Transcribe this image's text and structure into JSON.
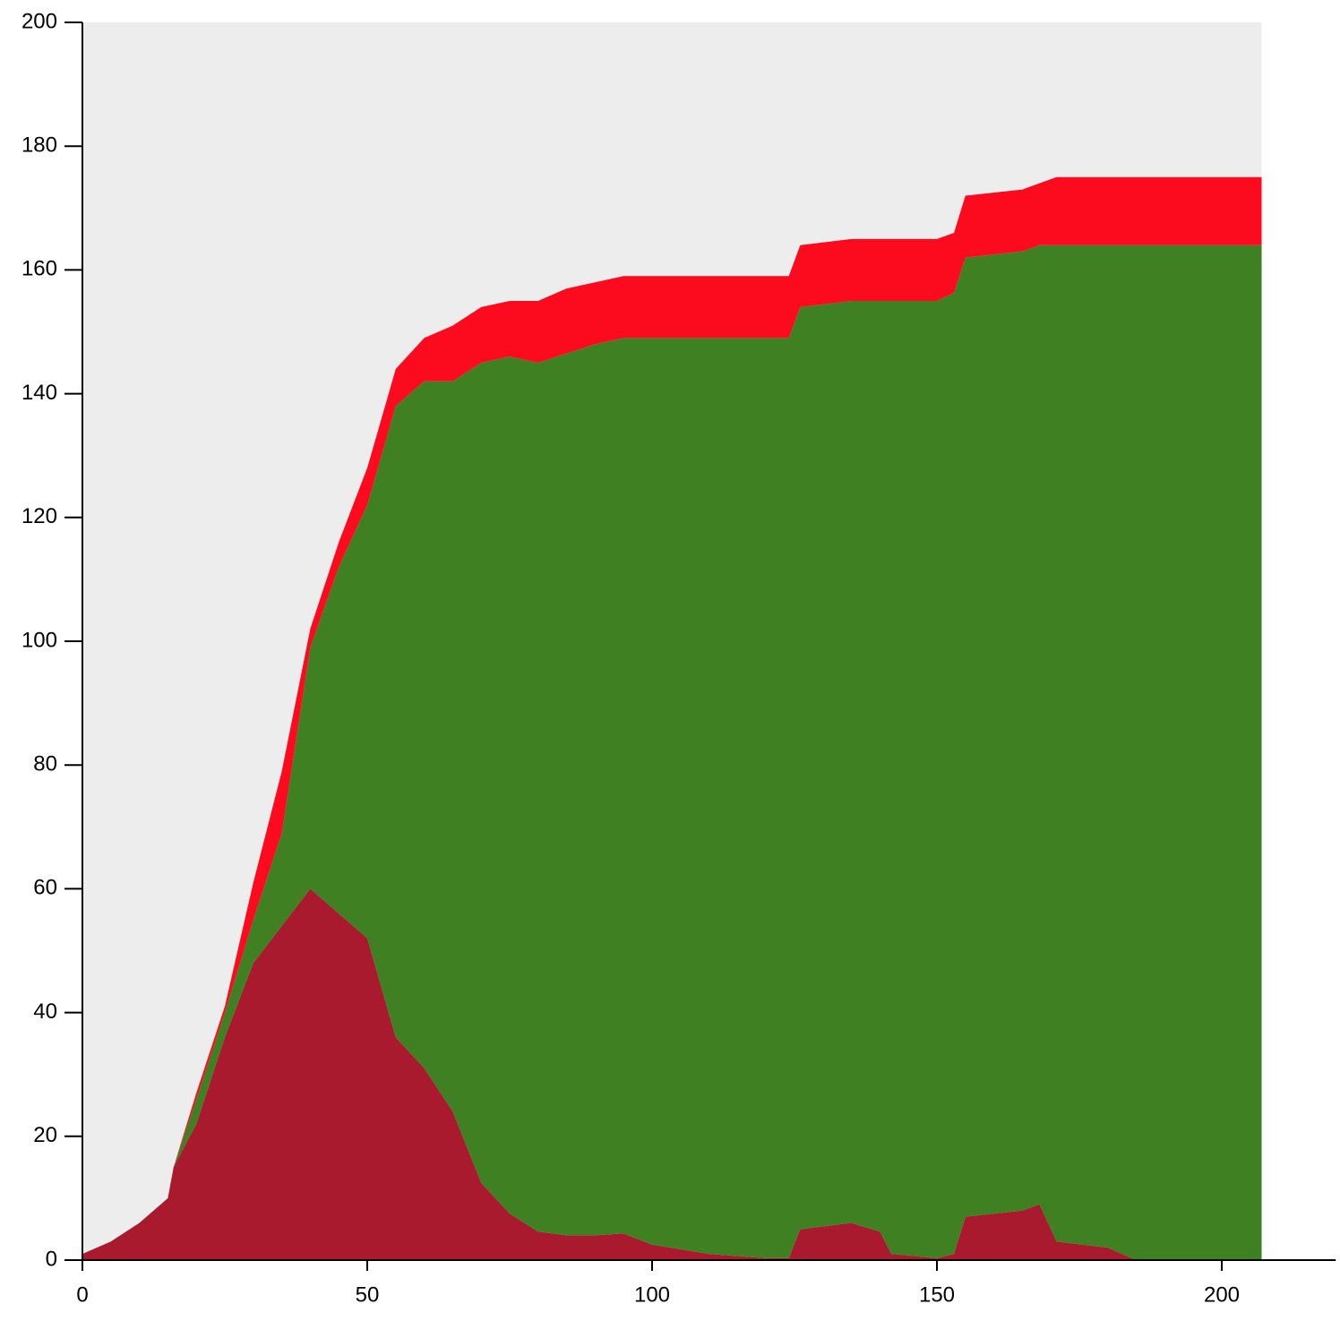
{
  "chart_data": {
    "type": "stacked_area",
    "x": [
      0,
      5,
      10,
      15,
      16,
      20,
      25,
      30,
      35,
      40,
      45,
      50,
      55,
      60,
      65,
      70,
      75,
      80,
      85,
      90,
      95,
      100,
      110,
      120,
      124,
      126,
      135,
      140,
      142,
      150,
      153,
      155,
      165,
      168,
      171,
      180,
      185,
      207
    ],
    "series": [
      {
        "color": "#a91a2e",
        "values": [
          1,
          3,
          6,
          10,
          15,
          22,
          36,
          48,
          54,
          60,
          56,
          52,
          36,
          31,
          24,
          12.5,
          7.5,
          4.6,
          4,
          4,
          4.3,
          2.5,
          1,
          0.3,
          0.3,
          5,
          6,
          4.6,
          1,
          0.3,
          1,
          7,
          8,
          9,
          3,
          2,
          0,
          0
        ]
      },
      {
        "color": "#3e8022",
        "values": [
          0,
          0,
          0,
          0,
          0,
          4,
          4,
          7,
          15,
          39,
          56,
          70,
          102,
          111,
          118,
          132.5,
          138.5,
          140.4,
          142.5,
          144,
          144.7,
          146.5,
          148,
          148.7,
          148.7,
          149,
          149,
          150.4,
          154,
          154.7,
          155.3,
          155,
          155,
          155,
          161,
          162,
          164,
          164
        ]
      },
      {
        "color": "#fc0a1e",
        "values": [
          0,
          0,
          0,
          0,
          0,
          1,
          1,
          6,
          10,
          3,
          4,
          6,
          6,
          7,
          9,
          9,
          9,
          10,
          10.5,
          10,
          10,
          10,
          10,
          10,
          10,
          10,
          10,
          10,
          10,
          10,
          9.7,
          10,
          10,
          10,
          11,
          11,
          11,
          11
        ]
      }
    ],
    "xlim": [
      0,
      220
    ],
    "xticks": [
      0,
      50,
      100,
      150,
      200
    ],
    "ylim": [
      0,
      200
    ],
    "yticks": [
      0,
      20,
      40,
      60,
      80,
      100,
      120,
      140,
      160,
      180,
      200
    ],
    "background": "#ededed"
  }
}
